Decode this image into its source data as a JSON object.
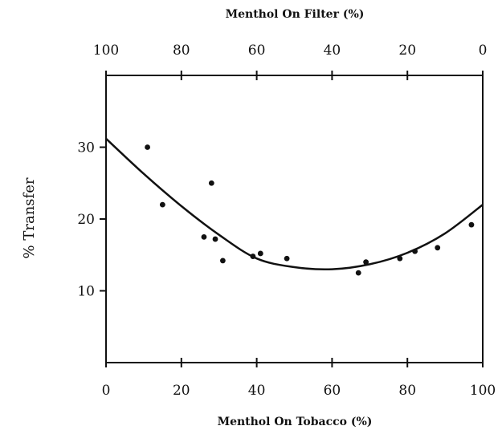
{
  "chart_data": {
    "type": "scatter",
    "title": "",
    "xlabel": "Menthol On Tobacco (%)",
    "x2label": "Menthol On Filter (%)",
    "ylabel": "% Transfer",
    "xlim": [
      0,
      100
    ],
    "x2lim": [
      100,
      0
    ],
    "ylim": [
      0,
      40
    ],
    "x_ticks": [
      "0",
      "20",
      "40",
      "60",
      "80",
      "100"
    ],
    "x2_ticks": [
      "100",
      "80",
      "60",
      "40",
      "20",
      "0"
    ],
    "y_ticks": [
      "10",
      "20",
      "30"
    ],
    "grid": false,
    "points": [
      {
        "x": 11,
        "y": 30
      },
      {
        "x": 15,
        "y": 22
      },
      {
        "x": 26,
        "y": 17.5
      },
      {
        "x": 28,
        "y": 25
      },
      {
        "x": 29,
        "y": 17.2
      },
      {
        "x": 31,
        "y": 14.2
      },
      {
        "x": 39,
        "y": 14.8
      },
      {
        "x": 41,
        "y": 15.2
      },
      {
        "x": 48,
        "y": 14.5
      },
      {
        "x": 67,
        "y": 12.5
      },
      {
        "x": 69,
        "y": 14
      },
      {
        "x": 78,
        "y": 14.5
      },
      {
        "x": 82,
        "y": 15.5
      },
      {
        "x": 88,
        "y": 16
      },
      {
        "x": 97,
        "y": 19.2
      }
    ],
    "fit_curve": [
      {
        "x": 0,
        "y": 31.2
      },
      {
        "x": 10,
        "y": 26.3
      },
      {
        "x": 20,
        "y": 21.8
      },
      {
        "x": 30,
        "y": 17.8
      },
      {
        "x": 40,
        "y": 14.5
      },
      {
        "x": 50,
        "y": 13.3
      },
      {
        "x": 60,
        "y": 13
      },
      {
        "x": 70,
        "y": 13.7
      },
      {
        "x": 80,
        "y": 15.3
      },
      {
        "x": 90,
        "y": 18
      },
      {
        "x": 100,
        "y": 22
      }
    ],
    "colors": {
      "ink": "#111111",
      "background": "#ffffff"
    }
  }
}
